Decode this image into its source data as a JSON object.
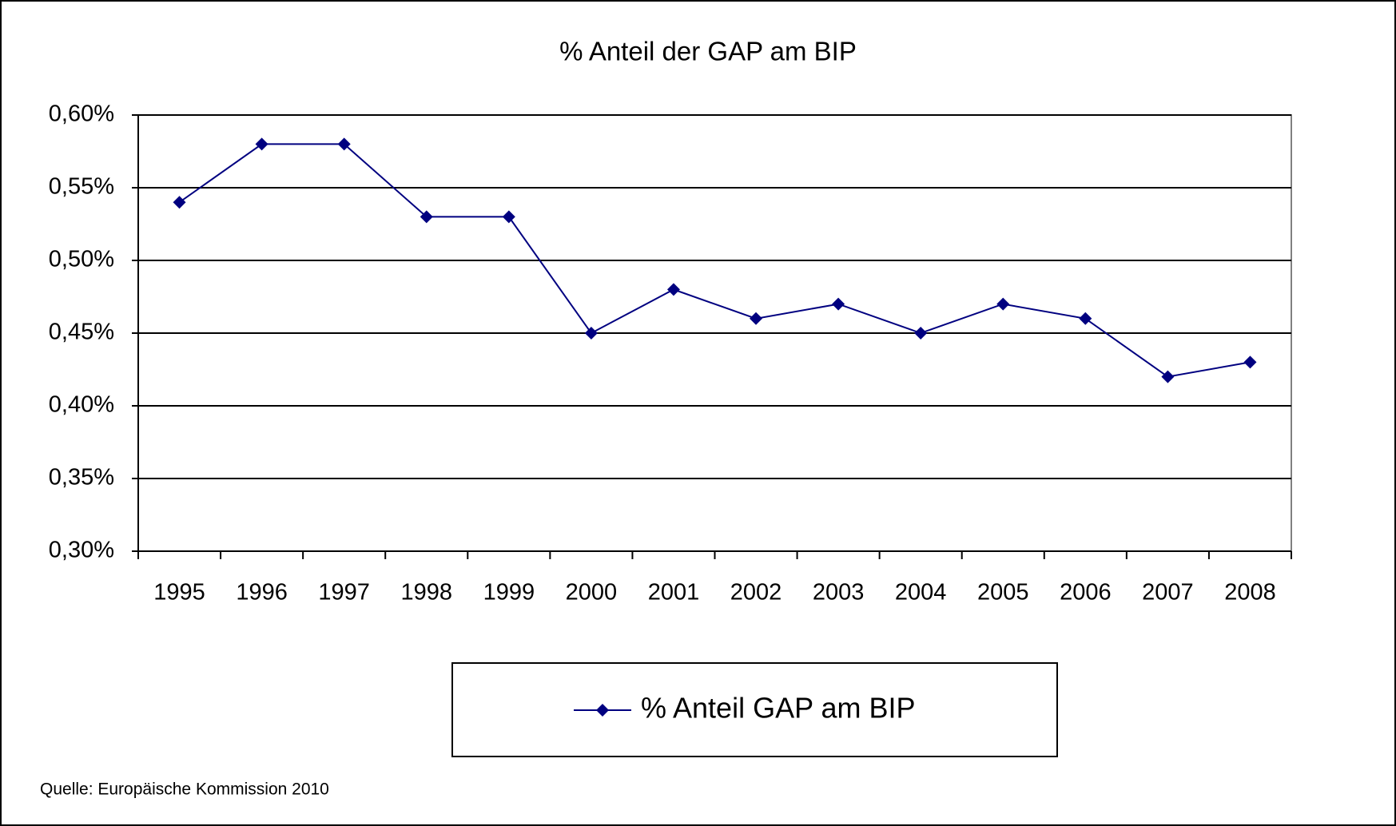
{
  "chart_data": {
    "type": "line",
    "title": "% Anteil der GAP am BIP",
    "categories": [
      "1995",
      "1996",
      "1997",
      "1998",
      "1999",
      "2000",
      "2001",
      "2002",
      "2003",
      "2004",
      "2005",
      "2006",
      "2007",
      "2008"
    ],
    "series": [
      {
        "name": "% Anteil GAP am BIP",
        "color": "#000080",
        "values": [
          0.54,
          0.58,
          0.58,
          0.53,
          0.53,
          0.45,
          0.48,
          0.46,
          0.47,
          0.45,
          0.47,
          0.46,
          0.42,
          0.43
        ]
      }
    ],
    "ylim": [
      0.3,
      0.6
    ],
    "yticks": [
      {
        "value": 0.3,
        "label": "0,30%"
      },
      {
        "value": 0.35,
        "label": "0,35%"
      },
      {
        "value": 0.4,
        "label": "0,40%"
      },
      {
        "value": 0.45,
        "label": "0,45%"
      },
      {
        "value": 0.5,
        "label": "0,50%"
      },
      {
        "value": 0.55,
        "label": "0,55%"
      },
      {
        "value": 0.6,
        "label": "0,60%"
      }
    ],
    "grid": true,
    "legend": "bottom",
    "source": "Quelle: Europäische Kommission 2010"
  }
}
